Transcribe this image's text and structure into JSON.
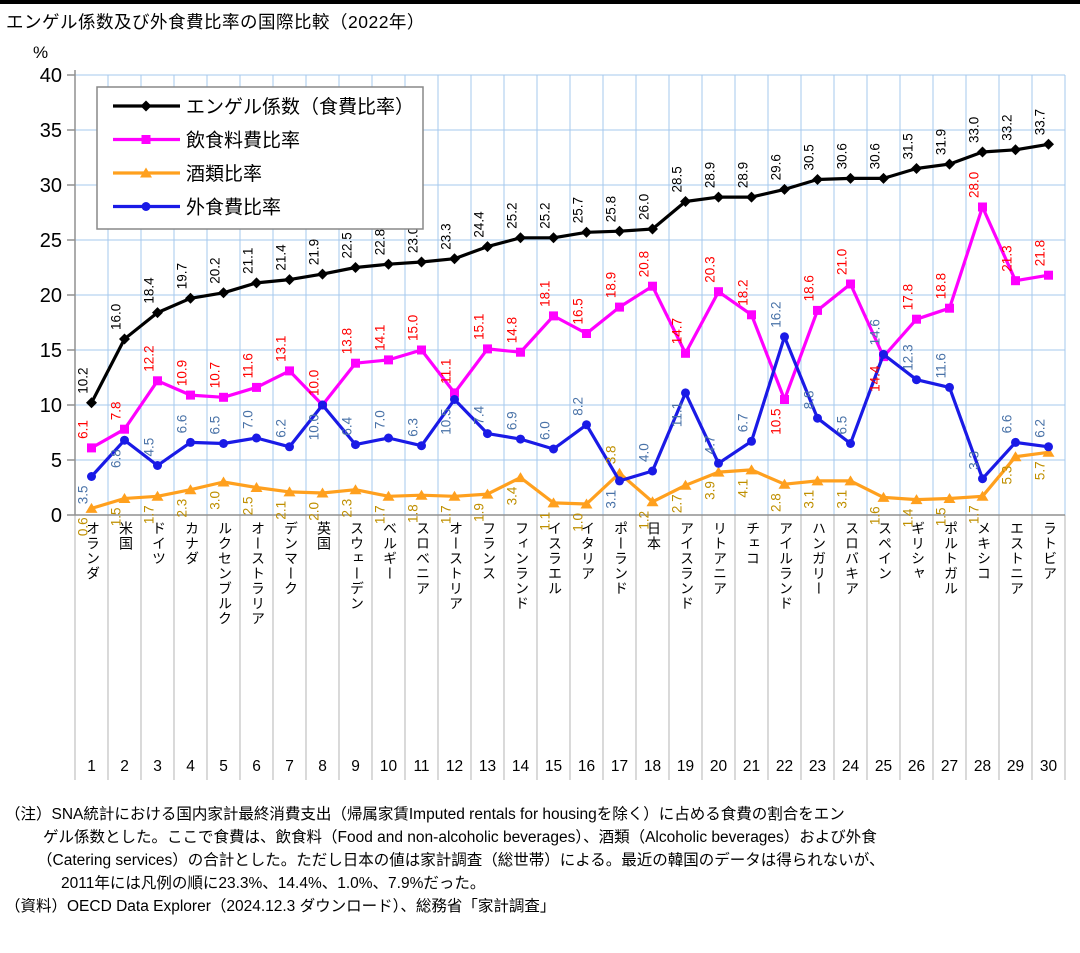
{
  "page": {
    "title": "エンゲル係数及び外食費比率の国際比較（2022年）"
  },
  "chart_data": {
    "type": "line",
    "title": "エンゲル係数及び外食費比率の国際比較（2022年）",
    "y_axis_unit": "%",
    "ylim": [
      0,
      40
    ],
    "ytick_interval": 5,
    "grid": true,
    "legend_position": "top-left",
    "x_numbers": [
      1,
      2,
      3,
      4,
      5,
      6,
      7,
      8,
      9,
      10,
      11,
      12,
      13,
      14,
      15,
      16,
      17,
      18,
      19,
      20,
      21,
      22,
      23,
      24,
      25,
      26,
      27,
      28,
      29,
      30
    ],
    "categories": [
      "オランダ",
      "米国",
      "ドイツ",
      "カナダ",
      "ルクセンブルク",
      "オーストラリア",
      "デンマーク",
      "英国",
      "スウェーデン",
      "ベルギー",
      "スロベニア",
      "オーストリア",
      "フランス",
      "フィンランド",
      "イスラエル",
      "イタリア",
      "ポーランド",
      "日本",
      "アイスランド",
      "リトアニア",
      "チェコ",
      "アイルランド",
      "ハンガリー",
      "スロバキア",
      "スペイン",
      "ギリシャ",
      "ポルトガル",
      "メキシコ",
      "エストニア",
      "ラトビア"
    ],
    "series": [
      {
        "name": "エンゲル係数（食費比率）",
        "marker": "diamond",
        "color": "#000000",
        "label_color": "#000000",
        "label_side": "above",
        "label_side_overrides": {},
        "values": [
          10.2,
          16.0,
          18.4,
          19.7,
          20.2,
          21.1,
          21.4,
          21.9,
          22.5,
          22.8,
          23.0,
          23.3,
          24.4,
          25.2,
          25.2,
          25.7,
          25.8,
          26.0,
          28.5,
          28.9,
          28.9,
          29.6,
          30.5,
          30.6,
          30.6,
          31.5,
          31.9,
          33.0,
          33.2,
          33.7
        ]
      },
      {
        "name": "飲食料費比率",
        "marker": "square",
        "color": "#FF00FF",
        "label_color": "#FF0000",
        "label_side": "above",
        "label_side_overrides": {
          "21": "below",
          "24": "below"
        },
        "values": [
          6.1,
          7.8,
          12.2,
          10.9,
          10.7,
          11.6,
          13.1,
          10.0,
          13.8,
          14.1,
          15.0,
          11.1,
          15.1,
          14.8,
          18.1,
          16.5,
          18.9,
          20.8,
          14.7,
          20.3,
          18.2,
          10.5,
          18.6,
          21.0,
          14.4,
          17.8,
          18.8,
          28.0,
          21.3,
          21.8
        ]
      },
      {
        "name": "酒類比率",
        "marker": "triangle",
        "color": "#FFA01E",
        "label_color": "#BF8F00",
        "label_side": "below",
        "label_side_overrides": {
          "16": "above"
        },
        "values": [
          0.6,
          1.5,
          1.7,
          2.3,
          3.0,
          2.5,
          2.1,
          2.0,
          2.3,
          1.7,
          1.8,
          1.7,
          1.9,
          3.4,
          1.1,
          1.0,
          3.8,
          1.2,
          2.7,
          3.9,
          4.1,
          2.8,
          3.1,
          3.1,
          1.6,
          1.4,
          1.5,
          1.7,
          5.3,
          5.7
        ]
      },
      {
        "name": "外食費比率",
        "marker": "circle",
        "color": "#1A1AE6",
        "label_color": "#4A73A8",
        "label_side": "above",
        "label_side_overrides": {
          "0": "below",
          "1": "below",
          "7": "below",
          "11": "below",
          "16": "below",
          "18": "below"
        },
        "values": [
          3.5,
          6.8,
          4.5,
          6.6,
          6.5,
          7.0,
          6.2,
          10.0,
          6.4,
          7.0,
          6.3,
          10.5,
          7.4,
          6.9,
          6.0,
          8.2,
          3.1,
          4.0,
          11.1,
          4.7,
          6.7,
          16.2,
          8.8,
          6.5,
          14.6,
          12.3,
          11.6,
          3.3,
          6.6,
          6.2
        ]
      }
    ],
    "grid_color": "#A6C9EE",
    "axis_color": "#909090",
    "label_area_line_color": "#C0C0C0"
  },
  "notes": [
    "（注）SNA統計における国内家計最終消費支出（帰属家賃Imputed rentals for housingを除く）に占める食費の割合をエン",
    "ゲル係数とした。ここで食費は、飲食料（Food and non-alcoholic beverages）、酒類（Alcoholic beverages）および外食",
    "（Catering services）の合計とした。ただし日本の値は家計調査（総世帯）による。最近の韓国のデータは得られないが、",
    "2011年には凡例の順に23.3%、14.4%、1.0%、7.9%だった。",
    "（資料）OECD Data Explorer（2024.12.3 ダウンロード）、総務省「家計調査」"
  ]
}
